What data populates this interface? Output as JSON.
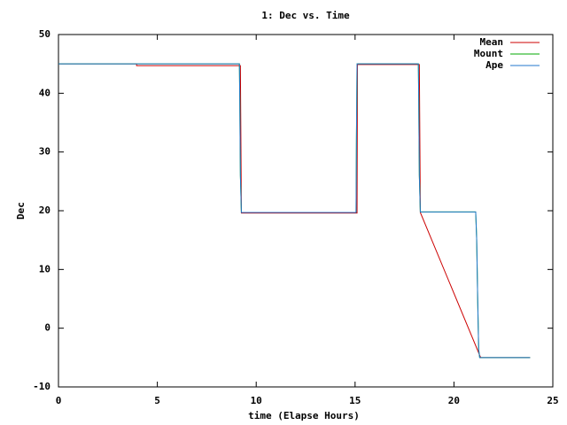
{
  "chart_data": {
    "type": "line",
    "title": "1: Dec vs. Time",
    "xlabel": "time (Elapse Hours)",
    "ylabel": "Dec",
    "xlim": [
      0,
      25
    ],
    "xticks": [
      0,
      5,
      10,
      15,
      20,
      25
    ],
    "ylim": [
      -10,
      50
    ],
    "yticks": [
      -10,
      0,
      10,
      20,
      30,
      40,
      50
    ],
    "legend": "top-right",
    "series": [
      {
        "name": "Mean",
        "color": "#cc0000",
        "x": [
          0,
          3.95,
          3.95,
          9.2,
          9.25,
          15.1,
          15.12,
          18.25,
          18.3,
          21.35,
          23.85
        ],
        "values": [
          45,
          45,
          44.7,
          44.7,
          19.6,
          19.6,
          44.9,
          44.9,
          19.7,
          -5,
          -5
        ]
      },
      {
        "name": "Mount",
        "color": "#00aa00",
        "x": [
          0,
          9.15,
          9.17,
          9.2,
          9.25,
          15.05,
          15.07,
          15.1,
          18.2,
          18.22,
          18.25,
          18.3,
          21.1,
          21.15,
          21.2,
          21.25,
          21.3,
          21.35,
          23.85
        ],
        "values": [
          45,
          45,
          38.7,
          26,
          19.7,
          19.7,
          32.5,
          45,
          45,
          38.7,
          26,
          19.8,
          19.8,
          15,
          5,
          -3.6,
          -5,
          -5,
          -5
        ]
      },
      {
        "name": "Ape",
        "color": "#2277cc",
        "x": [
          0,
          9.15,
          9.17,
          9.2,
          9.25,
          15.05,
          15.07,
          15.1,
          18.2,
          18.22,
          18.25,
          18.3,
          21.1,
          21.15,
          21.2,
          21.25,
          21.3,
          21.35,
          23.85
        ],
        "values": [
          45,
          45,
          38.7,
          26,
          19.7,
          19.7,
          32.5,
          45,
          45,
          38.7,
          26,
          19.8,
          19.8,
          15,
          5,
          -3.6,
          -5,
          -5,
          -5
        ]
      }
    ]
  }
}
